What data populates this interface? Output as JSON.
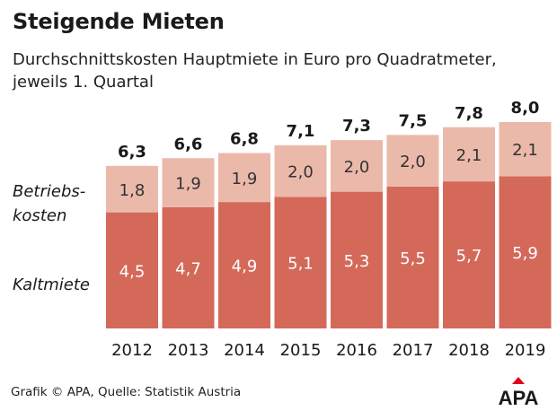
{
  "chart_data": {
    "type": "stacked-bar",
    "title": "Steigende Mieten",
    "subtitle": "Durchschnittskosten Hauptmiete in Euro pro Quadratmeter, jeweils 1. Quartal",
    "categories": [
      "2012",
      "2013",
      "2014",
      "2015",
      "2016",
      "2017",
      "2018",
      "2019"
    ],
    "series": [
      {
        "name": "Kaltmiete",
        "label": "Kaltmiete",
        "color": "#d4695a",
        "values": [
          4.5,
          4.7,
          4.9,
          5.1,
          5.3,
          5.5,
          5.7,
          5.9
        ],
        "value_labels": [
          "4,5",
          "4,7",
          "4,9",
          "5,1",
          "5,3",
          "5,5",
          "5,7",
          "5,9"
        ]
      },
      {
        "name": "Betriebskosten",
        "label_lines": [
          "Betriebs-",
          "kosten"
        ],
        "color": "#ebb9aa",
        "values": [
          1.8,
          1.9,
          1.9,
          2.0,
          2.0,
          2.0,
          2.1,
          2.1
        ],
        "value_labels": [
          "1,8",
          "1,9",
          "1,9",
          "2,0",
          "2,0",
          "2,0",
          "2,1",
          "2,1"
        ]
      }
    ],
    "totals": [
      6.3,
      6.6,
      6.8,
      7.1,
      7.3,
      7.5,
      7.8,
      8.0
    ],
    "total_labels": [
      "6,3",
      "6,6",
      "6,8",
      "7,1",
      "7,3",
      "7,5",
      "7,8",
      "8,0"
    ],
    "ylim": [
      0,
      8
    ]
  },
  "footer": {
    "source": "Grafik © APA, Quelle: Statistik Austria"
  },
  "logo": {
    "text": "APA",
    "color": "#e2001a"
  }
}
